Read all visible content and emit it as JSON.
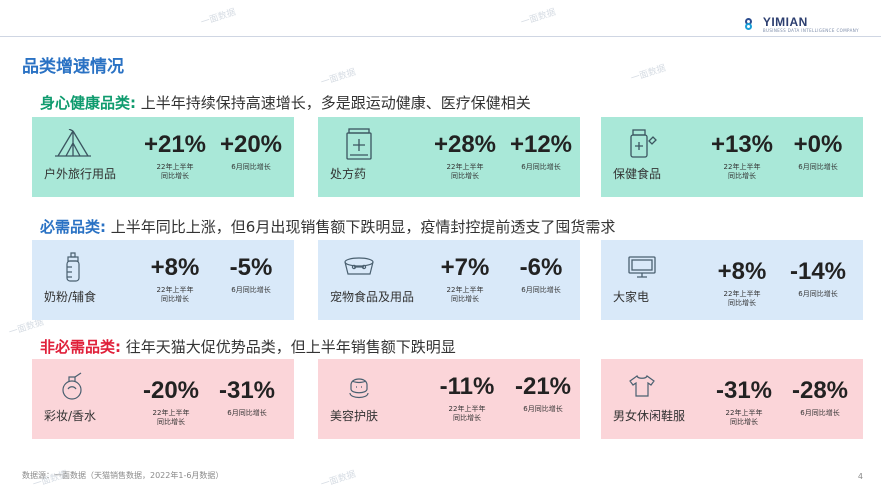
{
  "brand": {
    "name": "YIMIAN",
    "tagline": "BUSINESS DATA INTELLIGENCE COMPANY"
  },
  "title": "品类增速情况",
  "watermark_text": "一面数据",
  "metric_labels": {
    "h1": "22年上半年\n同比增长",
    "june": "6月同比增长"
  },
  "sections": [
    {
      "key": "身心健康品类:",
      "desc": "上半年持续保持高速增长，多是跟运动健康、医疗保健相关",
      "key_color": "#0f9b6e",
      "cards": [
        {
          "name": "户外旅行用品",
          "icon": "tent-icon",
          "h1": "+21%",
          "june": "+20%"
        },
        {
          "name": "处方药",
          "icon": "medicine-box-icon",
          "h1": "+28%",
          "june": "+12%"
        },
        {
          "name": "保健食品",
          "icon": "supplement-bottle-icon",
          "h1": "+13%",
          "june": "+0%"
        }
      ]
    },
    {
      "key": "必需品类:",
      "desc": "上半年同比上涨，但6月出现销售额下跌明显，疫情封控提前透支了囤货需求",
      "key_color": "#2a72c4",
      "cards": [
        {
          "name": "奶粉/辅食",
          "icon": "baby-bottle-icon",
          "h1": "+8%",
          "june": "-5%"
        },
        {
          "name": "宠物食品及用品",
          "icon": "pet-bowl-icon",
          "h1": "+7%",
          "june": "-6%"
        },
        {
          "name": "大家电",
          "icon": "tv-icon",
          "h1": "+8%",
          "june": "-14%"
        }
      ]
    },
    {
      "key": "非必需品类:",
      "desc": "往年天猫大促优势品类，但上半年销售额下跌明显",
      "key_color": "#e0203a",
      "cards": [
        {
          "name": "彩妆/香水",
          "icon": "perfume-icon",
          "h1": "-20%",
          "june": "-31%"
        },
        {
          "name": "美容护肤",
          "icon": "face-care-icon",
          "h1": "-11%",
          "june": "-21%"
        },
        {
          "name": "男女休闲鞋服",
          "icon": "tshirt-icon",
          "h1": "-31%",
          "june": "-28%"
        }
      ]
    }
  ],
  "footnote": "数据源：一面数据（天猫销售数据，2022年1-6月数据）",
  "page_number": "4"
}
